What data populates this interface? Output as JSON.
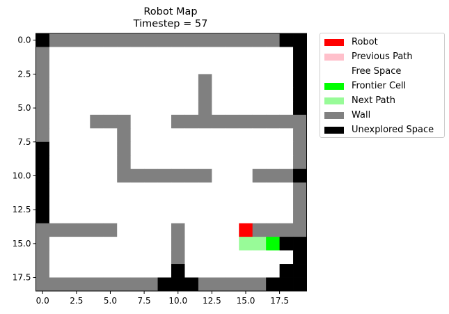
{
  "chart_data": {
    "type": "heatmap",
    "title": "Robot Map",
    "subtitle": "Timestep = 57",
    "xlabel": "",
    "ylabel": "",
    "xlim": [
      -0.5,
      19.5
    ],
    "ylim": [
      18.5,
      -0.5
    ],
    "x_ticks": [
      0.0,
      2.5,
      5.0,
      7.5,
      10.0,
      12.5,
      15.0,
      17.5
    ],
    "x_tick_labels": [
      "0.0",
      "2.5",
      "5.0",
      "7.5",
      "10.0",
      "12.5",
      "15.0",
      "17.5"
    ],
    "y_ticks": [
      0.0,
      2.5,
      5.0,
      7.5,
      10.0,
      12.5,
      15.0,
      17.5
    ],
    "y_tick_labels": [
      "0.0",
      "2.5",
      "5.0",
      "7.5",
      "10.0",
      "12.5",
      "15.0",
      "17.5"
    ],
    "grid": false,
    "legend_placement": "outside-upper-right",
    "legend": [
      {
        "key": "R",
        "label": "Robot",
        "color": "#ff0000"
      },
      {
        "key": "P",
        "label": "Previous Path",
        "color": "#ffc0cb"
      },
      {
        "key": "F",
        "label": "Free Space",
        "color": "#ffffff"
      },
      {
        "key": "C",
        "label": "Frontier Cell",
        "color": "#00ff00"
      },
      {
        "key": "N",
        "label": "Next Path",
        "color": "#98fb98"
      },
      {
        "key": "W",
        "label": "Wall",
        "color": "#808080"
      },
      {
        "key": "U",
        "label": "Unexplored Space",
        "color": "#000000"
      }
    ],
    "grid_rows": [
      "UWWWWWWWWWWWWWWWWWUU",
      "WFFFFFFFFFFFFFFFFFFU",
      "WFFFFFFFFFFFFFFFFFFU",
      "WFFFFFFFFFFFWFFFFFFU",
      "WFFFFFFFFFFFWFFFFFFU",
      "WFFFFFFFFFFFWFFFFFFU",
      "WFFFWWWFFFWWWWWWWWWW",
      "WFFFFFWFFFFFFFFFFFFW",
      "UFFFFFWFFFFFFFFFFFFW",
      "UFFFFFWFFFFFFFFFFFFW",
      "UFFFFFWWWWWWWFFFWWWU",
      "UFFFFFFFFFFFFFFFFFFW",
      "UFFFFFFFFFFFFFFFFFFW",
      "UFFFFFFFFFFFFFFFFFFW",
      "WWWWWWFFFFWFFFFRWWWW",
      "WFFFFFFFFFWFFFFNNCUU",
      "WFFFFFFFFFWFFFFFFFFU",
      "WFFFFFFFFFUFFFFFFFUU",
      "WWWWWWWWWUUUWWWWWUUU"
    ]
  }
}
